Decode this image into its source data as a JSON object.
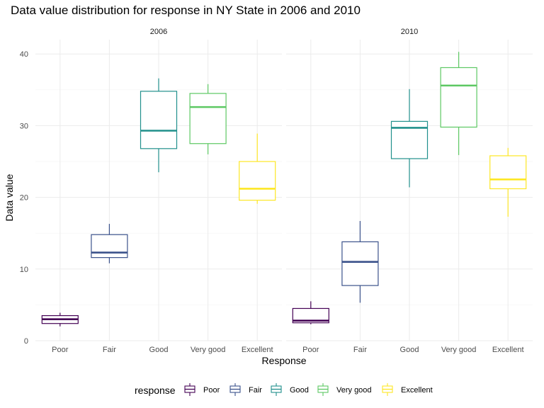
{
  "chart_data": {
    "type": "boxplot",
    "title": "Data value distribution for response in NY State in 2006 and 2010",
    "xlabel": "Response",
    "ylabel": "Data value",
    "categories": [
      "Poor",
      "Fair",
      "Good",
      "Very good",
      "Excellent"
    ],
    "ylim": [
      0,
      42
    ],
    "yticks": [
      0,
      10,
      20,
      30,
      40
    ],
    "grid": true,
    "legend": {
      "title": "response",
      "placement": "bottom",
      "entries": [
        "Poor",
        "Fair",
        "Good",
        "Very good",
        "Excellent"
      ]
    },
    "colors": {
      "Poor": "#440154",
      "Fair": "#3b528b",
      "Good": "#21908c",
      "Very good": "#5dc863",
      "Excellent": "#fde725"
    },
    "facets": [
      {
        "label": "2006",
        "boxes": [
          {
            "category": "Poor",
            "min": 2.0,
            "q1": 2.4,
            "median": 3.0,
            "q3": 3.5,
            "max": 3.9
          },
          {
            "category": "Fair",
            "min": 10.8,
            "q1": 11.6,
            "median": 12.3,
            "q3": 14.8,
            "max": 16.3
          },
          {
            "category": "Good",
            "min": 23.5,
            "q1": 26.8,
            "median": 29.3,
            "q3": 34.8,
            "max": 36.6
          },
          {
            "category": "Very good",
            "min": 26.0,
            "q1": 27.5,
            "median": 32.6,
            "q3": 34.5,
            "max": 35.8
          },
          {
            "category": "Excellent",
            "min": 19.1,
            "q1": 19.6,
            "median": 21.2,
            "q3": 25.0,
            "max": 28.9
          }
        ]
      },
      {
        "label": "2010",
        "boxes": [
          {
            "category": "Poor",
            "min": 2.3,
            "q1": 2.5,
            "median": 2.8,
            "q3": 4.5,
            "max": 5.5
          },
          {
            "category": "Fair",
            "min": 5.3,
            "q1": 7.7,
            "median": 11.0,
            "q3": 13.8,
            "max": 16.7
          },
          {
            "category": "Good",
            "min": 21.4,
            "q1": 25.4,
            "median": 29.7,
            "q3": 30.6,
            "max": 35.1
          },
          {
            "category": "Very good",
            "min": 25.9,
            "q1": 29.8,
            "median": 35.6,
            "q3": 38.1,
            "max": 40.3
          },
          {
            "category": "Excellent",
            "min": 17.3,
            "q1": 21.2,
            "median": 22.5,
            "q3": 25.8,
            "max": 26.9
          }
        ]
      }
    ]
  }
}
